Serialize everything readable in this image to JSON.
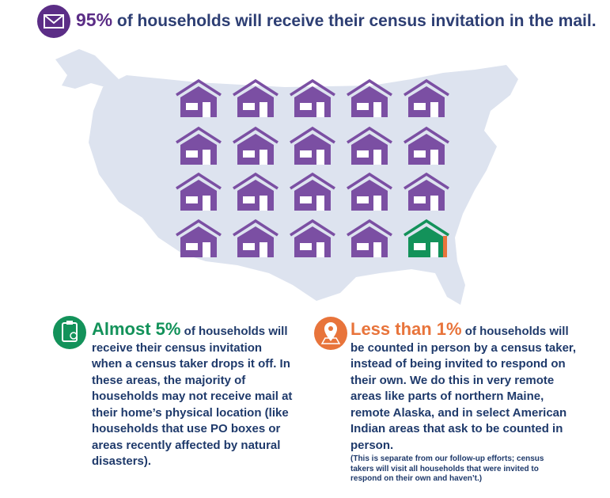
{
  "header": {
    "highlight": "95%",
    "text": "of households will receive their census invitation in the mail."
  },
  "left": {
    "highlight": "Almost 5%",
    "text": "of households will receive their census invitation when a census taker drops it off. In these areas, the majority of households may not receive mail at their home’s physical location (like households that use PO boxes or areas recently affected by natural disasters)."
  },
  "right": {
    "highlight": "Less than 1%",
    "text": "of households will be counted in person by a census taker, instead of being invited to respond on their own. We do this in very remote areas like parts of northern Maine, remote Alaska, and in select American Indian areas that ask to be counted in person.",
    "note": "(This is separate from our follow-up efforts; census takers will visit all households that were invited to respond on their own and haven’t.)"
  }
}
